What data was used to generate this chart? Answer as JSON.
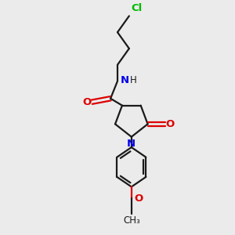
{
  "bg_color": "#ebebeb",
  "bond_color": "#1a1a1a",
  "cl_color": "#00bb00",
  "n_color": "#0000ee",
  "o_color": "#dd0000",
  "figsize": [
    3.0,
    3.0
  ],
  "dpi": 100,
  "xlim": [
    0,
    10
  ],
  "ylim": [
    0,
    10
  ]
}
